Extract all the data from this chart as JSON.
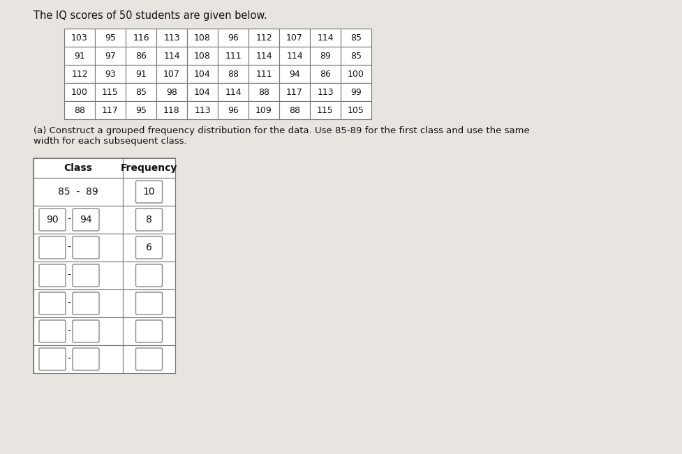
{
  "title": "The IQ scores of 50 students are given below.",
  "subtitle_a": "(a) Construct a grouped frequency distribution for the data. Use 85‑89 for the first class and use the same\nwidth for each subsequent class.",
  "iq_data": [
    [
      103,
      95,
      116,
      113,
      108,
      96,
      112,
      107,
      114,
      85
    ],
    [
      91,
      97,
      86,
      114,
      108,
      111,
      114,
      114,
      89,
      85
    ],
    [
      112,
      93,
      91,
      107,
      104,
      88,
      111,
      94,
      86,
      100
    ],
    [
      100,
      115,
      85,
      98,
      104,
      114,
      88,
      117,
      113,
      99
    ],
    [
      88,
      117,
      95,
      118,
      113,
      96,
      109,
      88,
      115,
      105
    ]
  ],
  "freq_table_header": [
    "Class",
    "Frequency"
  ],
  "freq_class_third_freq": "6",
  "num_freq_rows": 7,
  "bg_color": "#d8d8d8",
  "page_color": "#e8e4e0"
}
